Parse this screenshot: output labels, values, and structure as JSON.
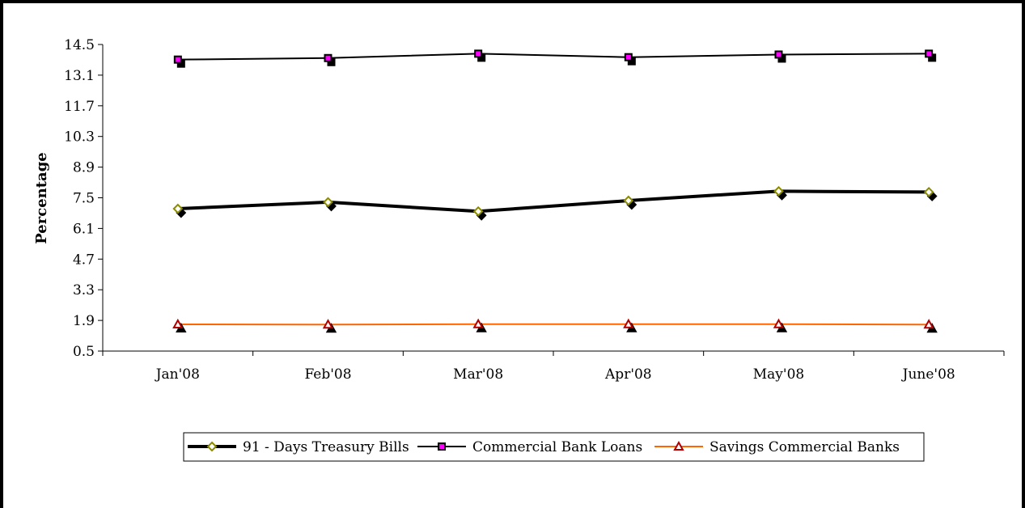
{
  "chart_data": {
    "type": "line",
    "title": "",
    "xlabel": "",
    "ylabel": "Percentage",
    "categories": [
      "Jan'08",
      "Feb'08",
      "Mar'08",
      "Apr'08",
      "May'08",
      "June'08"
    ],
    "y_ticks": [
      "0.5",
      "1.9",
      "3.3",
      "4.7",
      "6.1",
      "7.5",
      "8.9",
      "10.3",
      "11.7",
      "13.1",
      "14.5"
    ],
    "ylim": [
      0.5,
      14.5
    ],
    "grid": false,
    "legend_position": "bottom",
    "series": [
      {
        "name": "91 - Days Treasury Bills",
        "values": [
          7.0,
          7.3,
          6.88,
          7.37,
          7.8,
          7.76
        ],
        "line_color": "#000000",
        "marker": "diamond",
        "marker_fill": "#ffffff",
        "marker_stroke": "#8b8b00"
      },
      {
        "name": "Commercial Bank Loans",
        "values": [
          13.81,
          13.88,
          14.08,
          13.92,
          14.04,
          14.08
        ],
        "line_color": "#000000",
        "marker": "square",
        "marker_fill": "#ff00ff",
        "marker_stroke": "#000000"
      },
      {
        "name": "Savings Commercial Banks",
        "values": [
          1.72,
          1.71,
          1.73,
          1.73,
          1.73,
          1.71
        ],
        "line_color": "#ff6600",
        "marker": "triangle",
        "marker_fill": "#ffffff",
        "marker_stroke": "#b00000"
      }
    ]
  }
}
